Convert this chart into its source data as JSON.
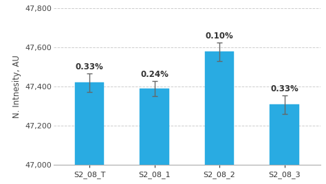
{
  "categories": [
    "S2_08_T",
    "S2_08_1",
    "S2_08_2",
    "S2_08_3"
  ],
  "values": [
    47420,
    47390,
    47578,
    47308
  ],
  "errors": [
    47,
    38,
    47,
    47
  ],
  "labels": [
    "0.33%",
    "0.24%",
    "0.10%",
    "0.33%"
  ],
  "bar_color": "#29ABE2",
  "bar_edge_color": "#29ABE2",
  "error_color": "#666666",
  "ylabel": "N. Intnesity, AU",
  "ylim": [
    47000,
    47800
  ],
  "yticks": [
    47000,
    47200,
    47400,
    47600,
    47800
  ],
  "background_color": "#ffffff",
  "grid_color": "#cccccc",
  "bar_width": 0.45,
  "label_fontsize": 8.5,
  "tick_fontsize": 8,
  "ylabel_fontsize": 8.5
}
